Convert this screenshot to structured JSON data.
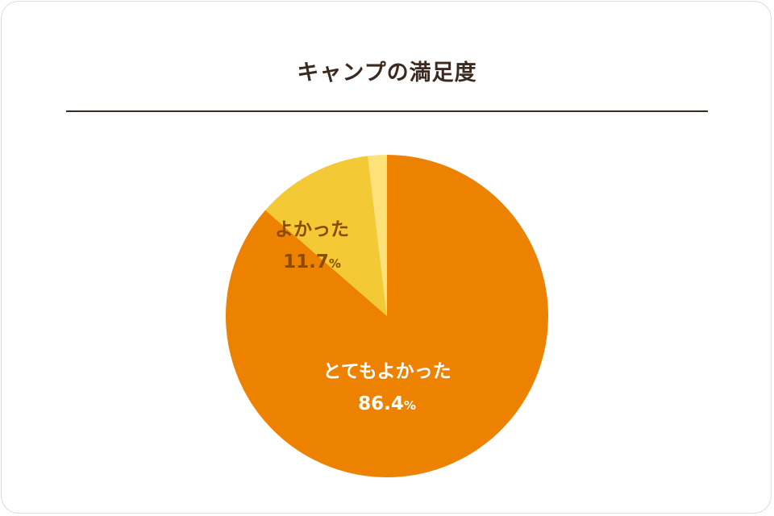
{
  "chart_data": {
    "type": "pie",
    "title": "キャンプの満足度",
    "slices": [
      {
        "label": "とてもよかった",
        "value": 86.4,
        "value_text": "86.4",
        "unit": "%",
        "color": "#ec8200",
        "label_color": "#ffffff"
      },
      {
        "label": "よかった",
        "value": 11.7,
        "value_text": "11.7",
        "unit": "%",
        "color": "#f3ca36",
        "label_color": "#8a4b00"
      },
      {
        "label": "",
        "value": 1.9,
        "value_text": "",
        "unit": "",
        "color": "#fde27a",
        "label_color": "#8a4b00"
      }
    ],
    "start_angle_deg": 0,
    "direction": "clockwise",
    "legend": "none"
  }
}
